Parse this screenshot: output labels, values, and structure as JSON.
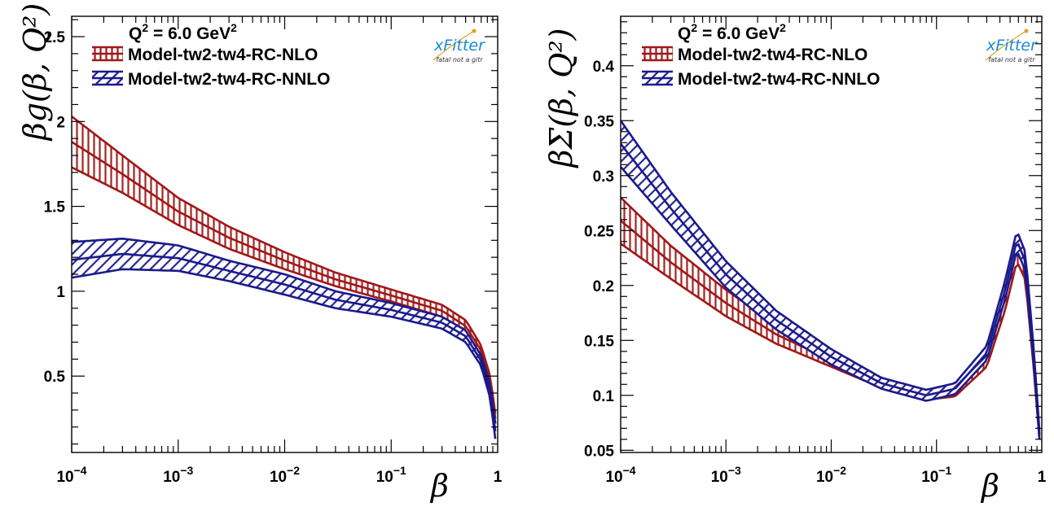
{
  "colors": {
    "nlo": "#a01818",
    "nnlo": "#1a1a8c",
    "logo_blue": "#1a8ad4",
    "logo_gold": "#e0a020"
  },
  "logo": {
    "name": "xFitter",
    "tagline": "fatal not a gitr"
  },
  "chart_data": [
    {
      "type": "area",
      "annotation": "Q² = 6.0 GeV²",
      "annotation_parts": {
        "base": "Q",
        "exp1": "2",
        "mid": " = 6.0 GeV",
        "exp2": "2"
      },
      "xlabel": "β",
      "ylabel": "βg(β, Q²)",
      "xscale": "log",
      "xlim": [
        0.0001,
        1
      ],
      "ylim": [
        0.05,
        2.62
      ],
      "xticks": [
        0.0001,
        0.001,
        0.01,
        0.1,
        1
      ],
      "xtick_labels": [
        {
          "base": "10",
          "exp": "−4"
        },
        {
          "base": "10",
          "exp": "−3"
        },
        {
          "base": "10",
          "exp": "−2"
        },
        {
          "base": "10",
          "exp": "−1"
        },
        {
          "base": "1",
          "exp": ""
        }
      ],
      "yticks": [
        0.5,
        1,
        1.5,
        2,
        2.5
      ],
      "ytick_labels": [
        "0.5",
        "1",
        "1.5",
        "2",
        "2.5"
      ],
      "legend": [
        "Model-tw2-tw4-RC-NLO",
        "Model-tw2-tw4-RC-NNLO"
      ],
      "legend_position": "top-left",
      "grid": false,
      "series": [
        {
          "name": "Model-tw2-tw4-RC-NLO",
          "hatch": "vertical",
          "x": [
            0.0001,
            0.0003,
            0.001,
            0.003,
            0.01,
            0.03,
            0.1,
            0.3,
            0.5,
            0.7,
            0.85,
            0.95
          ],
          "upper": [
            2.03,
            1.8,
            1.55,
            1.38,
            1.23,
            1.11,
            1.01,
            0.92,
            0.83,
            0.68,
            0.5,
            0.28
          ],
          "lower": [
            1.73,
            1.58,
            1.39,
            1.25,
            1.13,
            1.03,
            0.94,
            0.85,
            0.76,
            0.62,
            0.44,
            0.22
          ]
        },
        {
          "name": "Model-tw2-tw4-RC-NNLO",
          "hatch": "diagonal",
          "x": [
            0.0001,
            0.0003,
            0.001,
            0.003,
            0.01,
            0.03,
            0.1,
            0.3,
            0.5,
            0.7,
            0.85,
            0.95
          ],
          "upper": [
            1.29,
            1.31,
            1.27,
            1.18,
            1.1,
            1.0,
            0.93,
            0.85,
            0.77,
            0.62,
            0.45,
            0.22
          ],
          "lower": [
            1.08,
            1.13,
            1.12,
            1.06,
            0.98,
            0.9,
            0.85,
            0.78,
            0.7,
            0.56,
            0.37,
            0.13
          ]
        }
      ]
    },
    {
      "type": "area",
      "annotation": "Q² = 6.0 GeV²",
      "annotation_parts": {
        "base": "Q",
        "exp1": "2",
        "mid": " = 6.0 GeV",
        "exp2": "2"
      },
      "xlabel": "β",
      "ylabel": "βΣ(β, Q²)",
      "xscale": "log",
      "xlim": [
        0.0001,
        1
      ],
      "ylim": [
        0.048,
        0.445
      ],
      "xticks": [
        0.0001,
        0.001,
        0.01,
        0.1,
        1
      ],
      "xtick_labels": [
        {
          "base": "10",
          "exp": "−4"
        },
        {
          "base": "10",
          "exp": "−3"
        },
        {
          "base": "10",
          "exp": "−2"
        },
        {
          "base": "10",
          "exp": "−1"
        },
        {
          "base": "1",
          "exp": ""
        }
      ],
      "yticks": [
        0.05,
        0.1,
        0.15,
        0.2,
        0.25,
        0.3,
        0.35,
        0.4
      ],
      "ytick_labels": [
        "0.05",
        "0.1",
        "0.15",
        "0.2",
        "0.25",
        "0.3",
        "0.35",
        "0.4"
      ],
      "legend": [
        "Model-tw2-tw4-RC-NLO",
        "Model-tw2-tw4-RC-NNLO"
      ],
      "legend_position": "top-left",
      "grid": false,
      "series": [
        {
          "name": "Model-tw2-tw4-RC-NLO",
          "hatch": "vertical",
          "x": [
            0.0001,
            0.0003,
            0.001,
            0.003,
            0.01,
            0.03,
            0.08,
            0.15,
            0.3,
            0.45,
            0.58,
            0.7,
            0.85,
            0.95
          ],
          "upper": [
            0.28,
            0.236,
            0.196,
            0.164,
            0.138,
            0.116,
            0.104,
            0.108,
            0.14,
            0.2,
            0.245,
            0.225,
            0.13,
            0.065
          ],
          "lower": [
            0.238,
            0.206,
            0.172,
            0.147,
            0.126,
            0.107,
            0.096,
            0.099,
            0.126,
            0.178,
            0.222,
            0.205,
            0.118,
            0.06
          ]
        },
        {
          "name": "Model-tw2-tw4-RC-NNLO",
          "hatch": "diagonal",
          "x": [
            0.0001,
            0.0003,
            0.001,
            0.003,
            0.01,
            0.03,
            0.08,
            0.15,
            0.3,
            0.45,
            0.58,
            0.7,
            0.85,
            0.95
          ],
          "upper": [
            0.35,
            0.285,
            0.222,
            0.177,
            0.142,
            0.116,
            0.105,
            0.111,
            0.145,
            0.205,
            0.25,
            0.23,
            0.135,
            0.068
          ],
          "lower": [
            0.308,
            0.255,
            0.198,
            0.16,
            0.128,
            0.106,
            0.095,
            0.101,
            0.132,
            0.188,
            0.232,
            0.213,
            0.122,
            0.06
          ]
        }
      ]
    }
  ]
}
